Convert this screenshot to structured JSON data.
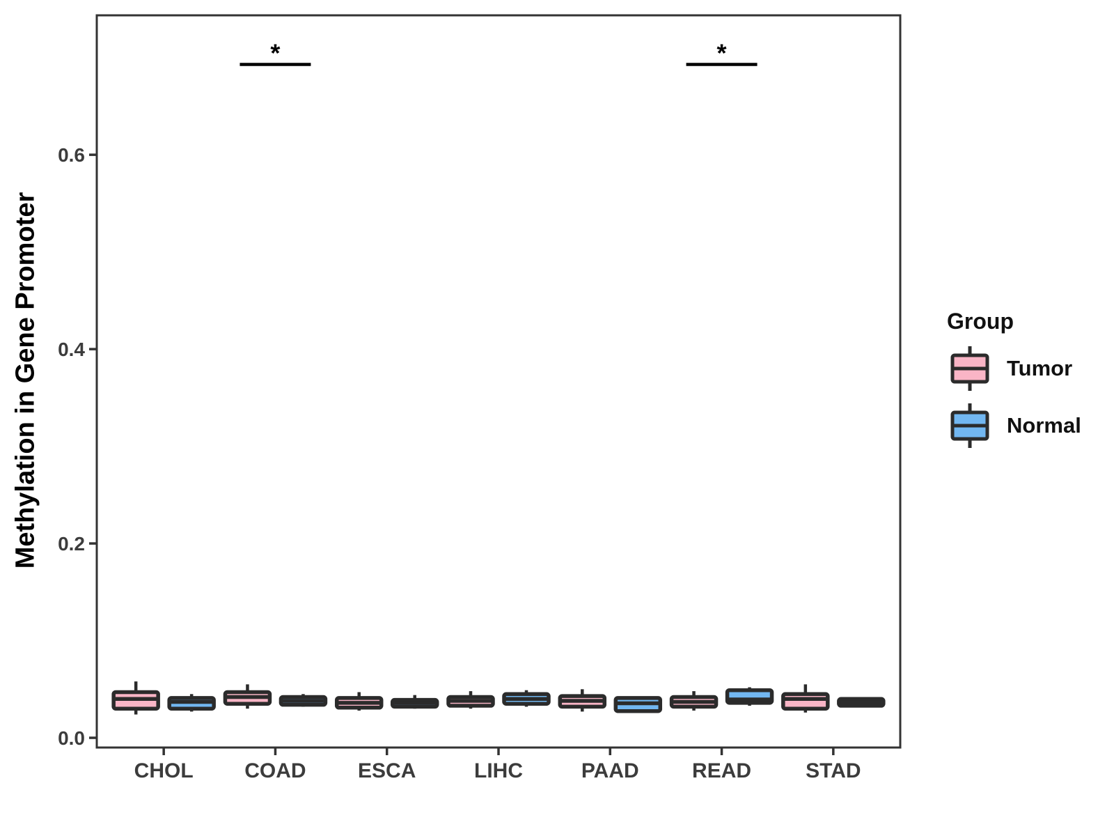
{
  "figure": {
    "background": "#FFFFFF"
  },
  "chart_data": {
    "type": "boxplot",
    "title": "",
    "xlabel": "",
    "ylabel": "Methylation in Gene Promoter",
    "categories": [
      "CHOL",
      "COAD",
      "ESCA",
      "LIHC",
      "PAAD",
      "READ",
      "STAD"
    ],
    "ylim": [
      -0.01,
      0.7435
    ],
    "yticks": {
      "values": [
        0.0,
        0.2,
        0.4,
        0.6
      ],
      "labels": [
        "0.0",
        "0.2",
        "0.4",
        "0.6"
      ]
    },
    "grid": "off",
    "legend": {
      "title": "Group",
      "position": "right"
    },
    "axis_color": "#333333",
    "tick_label_color": "#3C3C3C",
    "box_border_color": "#2B2B2B",
    "significance_color": "#000000",
    "series": [
      {
        "name": "Tumor",
        "color": "#F9B5C6",
        "boxes": [
          {
            "category": "CHOL",
            "whisker_low": 0.024,
            "q1": 0.03,
            "median": 0.04,
            "q3": 0.047,
            "whisker_high": 0.058
          },
          {
            "category": "COAD",
            "whisker_low": 0.03,
            "q1": 0.035,
            "median": 0.042,
            "q3": 0.047,
            "whisker_high": 0.055
          },
          {
            "category": "ESCA",
            "whisker_low": 0.028,
            "q1": 0.031,
            "median": 0.036,
            "q3": 0.041,
            "whisker_high": 0.047
          },
          {
            "category": "LIHC",
            "whisker_low": 0.03,
            "q1": 0.033,
            "median": 0.038,
            "q3": 0.042,
            "whisker_high": 0.048
          },
          {
            "category": "PAAD",
            "whisker_low": 0.027,
            "q1": 0.032,
            "median": 0.038,
            "q3": 0.043,
            "whisker_high": 0.05
          },
          {
            "category": "READ",
            "whisker_low": 0.028,
            "q1": 0.032,
            "median": 0.037,
            "q3": 0.042,
            "whisker_high": 0.048
          },
          {
            "category": "STAD",
            "whisker_low": 0.026,
            "q1": 0.03,
            "median": 0.04,
            "q3": 0.045,
            "whisker_high": 0.055
          }
        ]
      },
      {
        "name": "Normal",
        "color": "#72B7F1",
        "boxes": [
          {
            "category": "CHOL",
            "whisker_low": 0.027,
            "q1": 0.03,
            "median": 0.037,
            "q3": 0.041,
            "whisker_high": 0.045
          },
          {
            "category": "COAD",
            "whisker_low": 0.032,
            "q1": 0.034,
            "median": 0.038,
            "q3": 0.042,
            "whisker_high": 0.045
          },
          {
            "category": "ESCA",
            "whisker_low": 0.03,
            "q1": 0.032,
            "median": 0.036,
            "q3": 0.039,
            "whisker_high": 0.044
          },
          {
            "category": "LIHC",
            "whisker_low": 0.032,
            "q1": 0.035,
            "median": 0.04,
            "q3": 0.045,
            "whisker_high": 0.049
          },
          {
            "category": "PAAD",
            "whisker_low": 0.0275,
            "q1": 0.0275,
            "median": 0.0355,
            "q3": 0.041,
            "whisker_high": 0.041
          },
          {
            "category": "READ",
            "whisker_low": 0.033,
            "q1": 0.036,
            "median": 0.0395,
            "q3": 0.049,
            "whisker_high": 0.052
          },
          {
            "category": "STAD",
            "whisker_low": 0.033,
            "q1": 0.033,
            "median": 0.0365,
            "q3": 0.04,
            "whisker_high": 0.04
          }
        ]
      }
    ],
    "significance": [
      {
        "category": "COAD",
        "label": "*",
        "bar_y": 0.693
      },
      {
        "category": "READ",
        "label": "*",
        "bar_y": 0.693
      }
    ]
  }
}
